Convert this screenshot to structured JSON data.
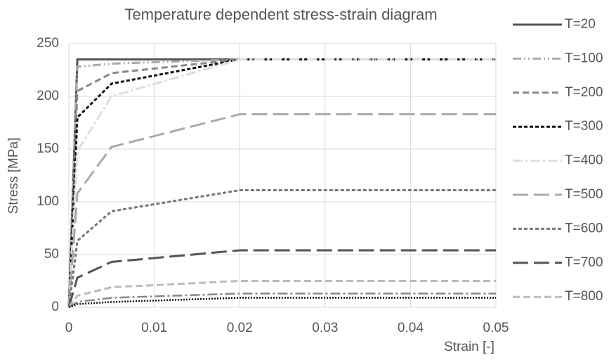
{
  "chart_data": {
    "type": "line",
    "title": "Temperature dependent stress-strain diagram",
    "x_label": "Strain [-]",
    "y_label": "Stress [MPa]",
    "x": [
      0,
      0.001,
      0.005,
      0.02,
      0.05
    ],
    "series": [
      {
        "name": "T=20",
        "color": "#555555",
        "dash": "none",
        "width": 3,
        "values": [
          0,
          235,
          235,
          235,
          235
        ]
      },
      {
        "name": "T=100",
        "color": "#aaaaaa",
        "dash": "12,4,2,4,2,4",
        "width": 3,
        "values": [
          0,
          228,
          231,
          235,
          235
        ]
      },
      {
        "name": "T=200",
        "color": "#888888",
        "dash": "9,5",
        "width": 3,
        "values": [
          0,
          205,
          222,
          235,
          235
        ]
      },
      {
        "name": "T=300",
        "color": "#111111",
        "dash": "5,3",
        "width": 3,
        "values": [
          0,
          180,
          212,
          235,
          235
        ]
      },
      {
        "name": "T=400",
        "color": "#dddddd",
        "dash": "14,4,3,4",
        "width": 3,
        "values": [
          0,
          148,
          200,
          235,
          235
        ]
      },
      {
        "name": "T=500",
        "color": "#aaaaaa",
        "dash": "22,8",
        "width": 3,
        "values": [
          0,
          108,
          152,
          183,
          183
        ]
      },
      {
        "name": "T=600",
        "color": "#777777",
        "dash": "5,3",
        "width": 3,
        "values": [
          0,
          63,
          91,
          111,
          111
        ]
      },
      {
        "name": "T=700",
        "color": "#555555",
        "dash": "22,8",
        "width": 3,
        "values": [
          0,
          28,
          43,
          54,
          54
        ]
      },
      {
        "name": "T=800",
        "color": "#bbbbbb",
        "dash": "10,5",
        "width": 3,
        "values": [
          0,
          11,
          19,
          25,
          25
        ]
      },
      {
        "color": "#888888",
        "dash": "14,4,3,4",
        "width": 2.5,
        "values": [
          0,
          5,
          9,
          13,
          13
        ]
      },
      {
        "color": "#111111",
        "dash": "2,2",
        "width": 2.5,
        "values": [
          0,
          3,
          5,
          9,
          9
        ]
      }
    ],
    "xlim": [
      0,
      0.05
    ],
    "xticks": [
      0,
      0.01,
      0.02,
      0.03,
      0.04,
      0.05
    ],
    "ylim": [
      0,
      250
    ],
    "yticks": [
      0,
      50,
      100,
      150,
      200,
      250
    ],
    "grid": true,
    "legend": "right"
  }
}
